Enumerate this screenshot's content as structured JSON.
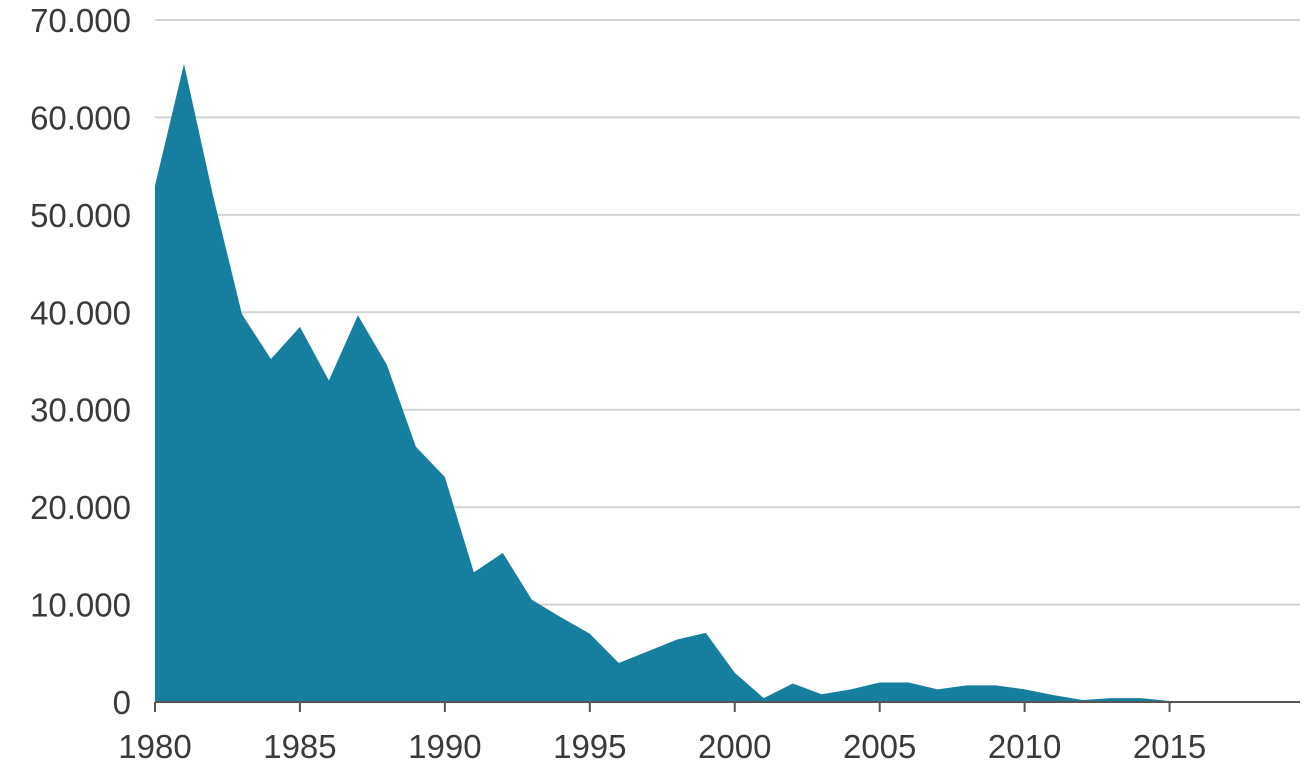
{
  "chart_data": {
    "type": "area",
    "title": "",
    "xlabel": "",
    "ylabel": "",
    "xlim": [
      1980,
      2019.5
    ],
    "ylim": [
      0,
      70000
    ],
    "grid": true,
    "legend": "none",
    "color": "#167e9f",
    "x_ticks": [
      1980,
      1985,
      1990,
      1995,
      2000,
      2005,
      2010,
      2015
    ],
    "x_tick_labels": [
      "1980",
      "1985",
      "1990",
      "1995",
      "2000",
      "2005",
      "2010",
      "2015"
    ],
    "y_ticks": [
      0,
      10000,
      20000,
      30000,
      40000,
      50000,
      60000,
      70000
    ],
    "y_tick_labels": [
      "0",
      "10.000",
      "20.000",
      "30.000",
      "40.000",
      "50.000",
      "60.000",
      "70.000"
    ],
    "series": [
      {
        "x": [
          1980,
          1981,
          1982,
          1983,
          1984,
          1985,
          1986,
          1987,
          1988,
          1989,
          1990,
          1991,
          1992,
          1993,
          1994,
          1995,
          1996,
          1997,
          1998,
          1999,
          2000,
          2001,
          2002,
          2003,
          2004,
          2005,
          2006,
          2007,
          2008,
          2009,
          2010,
          2011,
          2012,
          2013,
          2014,
          2015,
          2016,
          2017,
          2018,
          2019
        ],
        "values": [
          53000,
          65500,
          52000,
          39800,
          35200,
          38500,
          33000,
          39700,
          34600,
          26200,
          23100,
          13300,
          15300,
          10500,
          8700,
          7000,
          4000,
          5200,
          6400,
          7100,
          3000,
          400,
          1900,
          800,
          1300,
          2000,
          2000,
          1300,
          1700,
          1700,
          1300,
          700,
          200,
          400,
          400,
          100,
          0,
          0,
          0,
          0
        ]
      }
    ]
  }
}
